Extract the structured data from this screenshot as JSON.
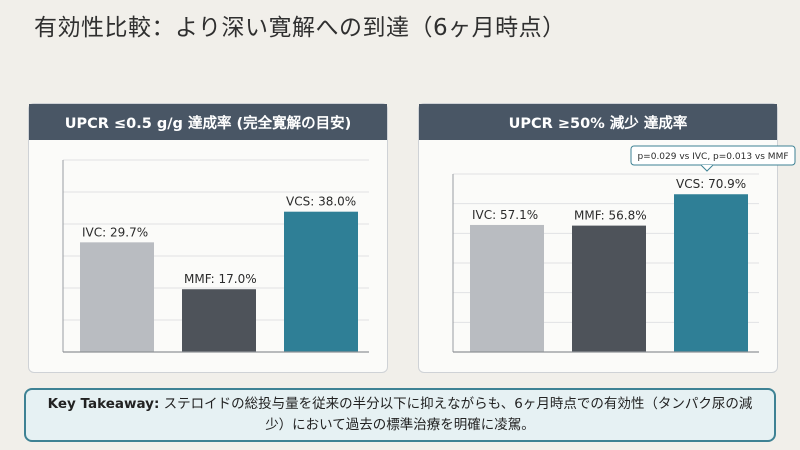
{
  "title": "有効性比較：より深い寛解への到達（6ヶ月時点）",
  "colors": {
    "IVC": "#b9bcc1",
    "MMF": "#4e535a",
    "VCS": "#2f7f96",
    "header": "#495665",
    "accent": "#3e8294"
  },
  "chart_data": [
    {
      "type": "bar",
      "title": "UPCR ≤0.5 g/g 達成率 (完全寛解の目安)",
      "categories": [
        "IVC",
        "MMF",
        "VCS"
      ],
      "values": [
        29.7,
        17.0,
        38.0
      ],
      "labels": [
        "IVC: 29.7%",
        "MMF: 17.0%",
        "VCS: 38.0%"
      ],
      "ylim": [
        0,
        52
      ],
      "grid": true
    },
    {
      "type": "bar",
      "title": "UPCR ≥50% 減少 達成率",
      "categories": [
        "IVC",
        "MMF",
        "VCS"
      ],
      "values": [
        57.1,
        56.8,
        70.9
      ],
      "labels": [
        "IVC: 57.1%",
        "MMF: 56.8%",
        "VCS: 70.9%"
      ],
      "ylim": [
        0,
        80
      ],
      "grid": true,
      "annotation": "p=0.029 vs IVC, p=0.013 vs MMF"
    }
  ],
  "takeaway": {
    "label": "Key Takeaway:",
    "text": " ステロイドの総投与量を従来の半分以下に抑えながらも、6ヶ月時点での有効性（タンパク尿の減少）において過去の標準治療を明確に凌駕。"
  }
}
